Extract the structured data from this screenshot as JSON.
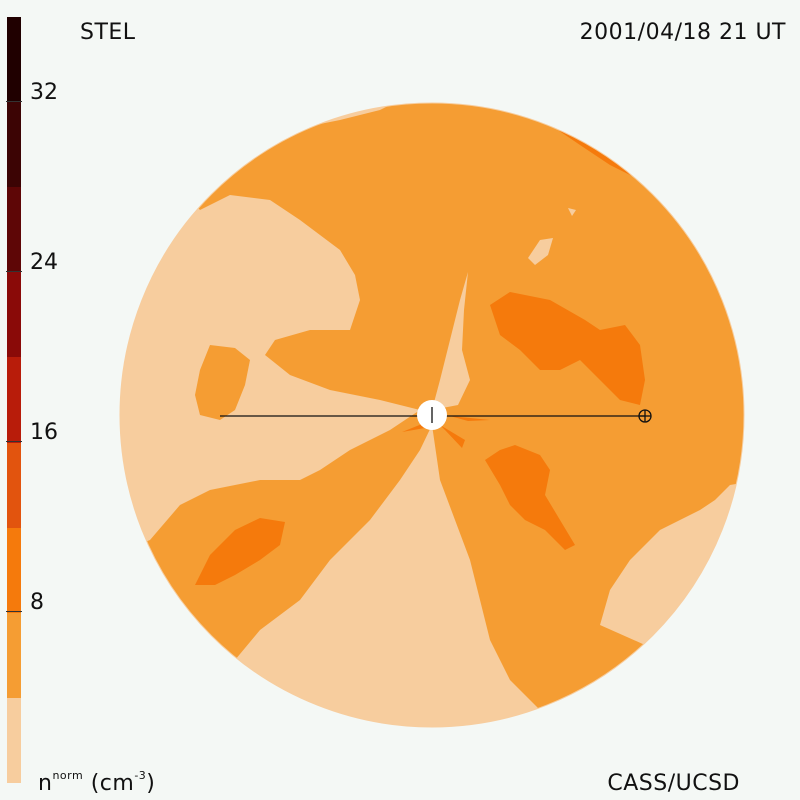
{
  "header": {
    "left": "STEL",
    "right": "2001/04/18 21 UT"
  },
  "footer": {
    "credit": "CASS/UCSD"
  },
  "units": {
    "base": "n",
    "sup": "norm",
    "rest": " (cm",
    "exp": "-3",
    "close": ")"
  },
  "colorbar": {
    "ticks": [
      "32",
      "24",
      "16",
      "8"
    ],
    "colors_top_to_bottom": [
      "#200000",
      "#3c0404",
      "#5e0606",
      "#8a0a08",
      "#b81c0a",
      "#e2540e",
      "#f57a0c",
      "#f59d33",
      "#f7cd9e"
    ]
  },
  "map": {
    "background_fill": "#f59d33",
    "disk_edge_color": "#f7cd9e",
    "earth_symbol": "circle-plus",
    "sun_symbol": "white-disk"
  }
}
